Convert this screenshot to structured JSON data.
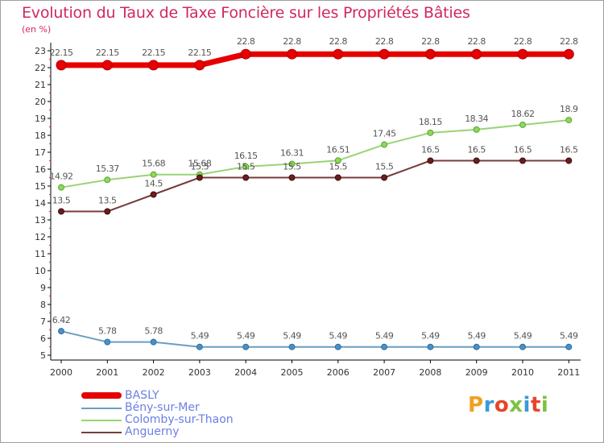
{
  "title": "Evolution du Taux de Taxe Foncière sur les Propriétés Bâties",
  "unit": "(en %)",
  "logo": {
    "text": "Proxiti",
    "colors": [
      "#f0a020",
      "#3a9ad9",
      "#e8452a",
      "#7cc242",
      "#3a9ad9",
      "#e8452a",
      "#7cc242"
    ]
  },
  "chart_data": {
    "type": "line",
    "title": "Evolution du Taux de Taxe Foncière sur les Propriétés Bâties",
    "ylabel": "(en %)",
    "xlabel": "",
    "ylim": [
      5,
      23
    ],
    "yticks": [
      "5",
      "6",
      "7",
      "8",
      "9",
      "10",
      "11",
      "12",
      "13",
      "14",
      "15",
      "16",
      "17",
      "18",
      "19",
      "20",
      "21",
      "22",
      "23"
    ],
    "x": [
      "2000",
      "2001",
      "2002",
      "2003",
      "2004",
      "2005",
      "2006",
      "2007",
      "2008",
      "2009",
      "2010",
      "2011"
    ],
    "series": [
      {
        "name": "BASLY",
        "color": "#e60000",
        "values": [
          22.15,
          22.15,
          22.15,
          22.15,
          22.8,
          22.8,
          22.8,
          22.8,
          22.8,
          22.8,
          22.8,
          22.8
        ],
        "labels": [
          "22.15",
          "22.15",
          "22.15",
          "22.15",
          "22.8",
          "22.8",
          "22.8",
          "22.8",
          "22.8",
          "22.8",
          "22.8",
          "22.8"
        ]
      },
      {
        "name": "Bény-sur-Mer",
        "color": "#6a9ec4",
        "values": [
          6.42,
          5.78,
          5.78,
          5.49,
          5.49,
          5.49,
          5.49,
          5.49,
          5.49,
          5.49,
          5.49,
          5.49
        ],
        "labels": [
          "6.42",
          "5.78",
          "5.78",
          "5.49",
          "5.49",
          "5.49",
          "5.49",
          "5.49",
          "5.49",
          "5.49",
          "5.49",
          "5.49"
        ]
      },
      {
        "name": "Colomby-sur-Thaon",
        "color": "#9ad377",
        "values": [
          14.92,
          15.37,
          15.68,
          15.68,
          16.15,
          16.31,
          16.51,
          17.45,
          18.15,
          18.34,
          18.62,
          18.9
        ],
        "labels": [
          "14.92",
          "15.37",
          "15.68",
          "15.68",
          "16.15",
          "16.31",
          "16.51",
          "17.45",
          "18.15",
          "18.34",
          "18.62",
          "18.9"
        ]
      },
      {
        "name": "Anguerny",
        "color": "#7a3b3b",
        "values": [
          13.5,
          13.5,
          14.5,
          15.5,
          15.5,
          15.5,
          15.5,
          15.5,
          16.5,
          16.5,
          16.5,
          16.5
        ],
        "labels": [
          "13.5",
          "13.5",
          "14.5",
          "15.5",
          "15.5",
          "15.5",
          "15.5",
          "15.5",
          "16.5",
          "16.5",
          "16.5",
          "16.5"
        ]
      }
    ],
    "legend_position": "bottom-left",
    "grid": false
  }
}
